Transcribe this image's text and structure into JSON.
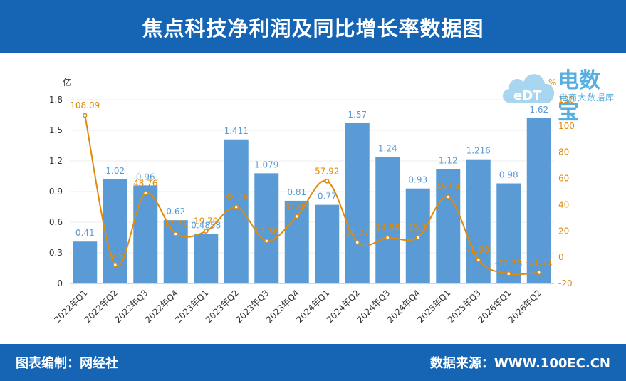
{
  "header": {
    "title": "焦点科技净利润及同比增长率数据图"
  },
  "footer": {
    "left": "图表编制：网经社",
    "right": "数据来源：WWW.100EC.CN"
  },
  "logo": {
    "main": "电数宝",
    "sub": "电商大数据库",
    "badge": "eDT"
  },
  "colors": {
    "header_bg": "#1565b4",
    "bar": "#5b9bd5",
    "line": "#e08a0b",
    "bar_label": "#5b9bd5",
    "line_label": "#e08a0b"
  },
  "chart_data": {
    "type": "bar+line",
    "categories": [
      "2022年Q1",
      "2022年Q2",
      "2022年Q3",
      "2022年Q4",
      "2023年Q1",
      "2023年Q2",
      "2023年Q3",
      "2023年Q4",
      "2024年Q1",
      "2024年Q2",
      "2024年Q3",
      "2024年Q4",
      "2025年Q1",
      "2025年Q3",
      "2026年Q1",
      "2026年Q2"
    ],
    "bar_values": [
      0.41,
      1.02,
      0.96,
      0.62,
      0.4858,
      1.411,
      1.079,
      0.81,
      0.77,
      1.57,
      1.24,
      0.93,
      1.12,
      1.216,
      0.98,
      1.62
    ],
    "bar_labels": [
      "0.41",
      "1.02",
      "0.96",
      "0.62",
      "0.4858",
      "1.411",
      "1.079",
      "0.81",
      "0.77",
      "1.57",
      "1.24",
      "0.93",
      "1.12",
      "1.216",
      "0.98",
      "1.62"
    ],
    "line_values": [
      108.09,
      -5.9,
      48.76,
      17.71,
      19.79,
      38.26,
      12.36,
      31.09,
      57.92,
      11.27,
      14.88,
      15.1,
      45.94,
      -1.98,
      -12.53,
      -11.71
    ],
    "line_labels": [
      "108.09",
      "-5.9",
      "48.76",
      "17.71",
      "19.79",
      "38.26",
      "12.36",
      "31.09",
      "57.92",
      "11.27",
      "14.88",
      "15.1",
      "45.94",
      "-1.98",
      "-12.53",
      "-11.71"
    ],
    "y_left": {
      "unit": "亿",
      "min": 0,
      "max": 1.8,
      "ticks": [
        "0",
        "0.3",
        "0.6",
        "0.9",
        "1.2",
        "1.5",
        "1.8"
      ]
    },
    "y_right": {
      "unit": "%",
      "min": -20,
      "max": 120,
      "ticks": [
        "-20",
        "0",
        "20",
        "40",
        "60",
        "80",
        "100",
        "120"
      ]
    }
  }
}
